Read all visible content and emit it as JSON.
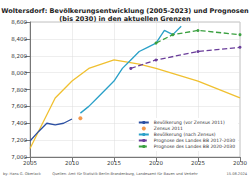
{
  "chart_data": {
    "type": "line",
    "title": "Woltersdorf: Bevölkerungsentwicklung (2005-2023) und Prognosen\n(bis 2030) in den aktuellen Grenzen",
    "annotations": [
      "by: Hans G. Oberlack",
      "Quellen: Amt für Statistik Berlin-Brandenburg, Landesamt für Bauen und Verkehr",
      "15.08.2024"
    ],
    "xlim": [
      2005,
      2030
    ],
    "xticks": [
      2005,
      2010,
      2015,
      2020,
      2025,
      2030
    ],
    "ylim": [
      7000,
      8600
    ],
    "yticks": [
      {
        "value": 7000,
        "label": "7,000"
      },
      {
        "value": 7200,
        "label": "7,200"
      },
      {
        "value": 7400,
        "label": "7,400"
      },
      {
        "value": 7600,
        "label": "7,600"
      },
      {
        "value": 7800,
        "label": "7,800"
      },
      {
        "value": 8000,
        "label": "8,000"
      },
      {
        "value": 8200,
        "label": "8,200"
      },
      {
        "value": 8400,
        "label": "8,400"
      },
      {
        "value": 8600,
        "label": "8,600"
      }
    ],
    "grid": true,
    "legend": "lower right",
    "series": [
      {
        "color": "#f0c030",
        "line_style": "solid",
        "marker": "none",
        "x": [
          2005,
          2008,
          2010,
          2012,
          2015,
          2018,
          2020,
          2025,
          2030
        ],
        "values": [
          7100,
          7700,
          7900,
          8050,
          8150,
          8100,
          8050,
          7900,
          7700
        ]
      },
      {
        "name": "Bevölkerung (vor Zensus 2011)",
        "color": "#2b4fa2",
        "line_style": "solid",
        "marker": "none",
        "x": [
          2005,
          2006,
          2007,
          2008,
          2009,
          2010
        ],
        "values": [
          7190,
          7300,
          7400,
          7380,
          7400,
          7450
        ]
      },
      {
        "name": "Zensus 2011",
        "type": "scatter",
        "color": "#f08020",
        "marker": "circle",
        "x": [
          2011
        ],
        "values": [
          7460
        ]
      },
      {
        "name": "Bevölkerung (nach Zensus)",
        "color": "#2aa0c8",
        "line_style": "solid",
        "marker": "none",
        "x": [
          2011,
          2012,
          2013,
          2014,
          2015,
          2016,
          2017,
          2018,
          2019,
          2020,
          2021,
          2022,
          2023
        ],
        "values": [
          7520,
          7600,
          7700,
          7800,
          7900,
          8050,
          8150,
          8250,
          8300,
          8350,
          8500,
          8450,
          8550
        ]
      },
      {
        "name": "Prognose des Landes BB 2017-2030",
        "color": "#6a3d9a",
        "line_style": "dashed",
        "marker": "circle",
        "x": [
          2017,
          2020,
          2025,
          2030
        ],
        "values": [
          8050,
          8150,
          8250,
          8300
        ]
      },
      {
        "name": "Prognose des Landes BB 2020-2030",
        "color": "#3aa040",
        "line_style": "dashed",
        "marker": "circle",
        "x": [
          2020,
          2022,
          2025,
          2030
        ],
        "values": [
          8350,
          8450,
          8500,
          8450
        ]
      }
    ]
  }
}
